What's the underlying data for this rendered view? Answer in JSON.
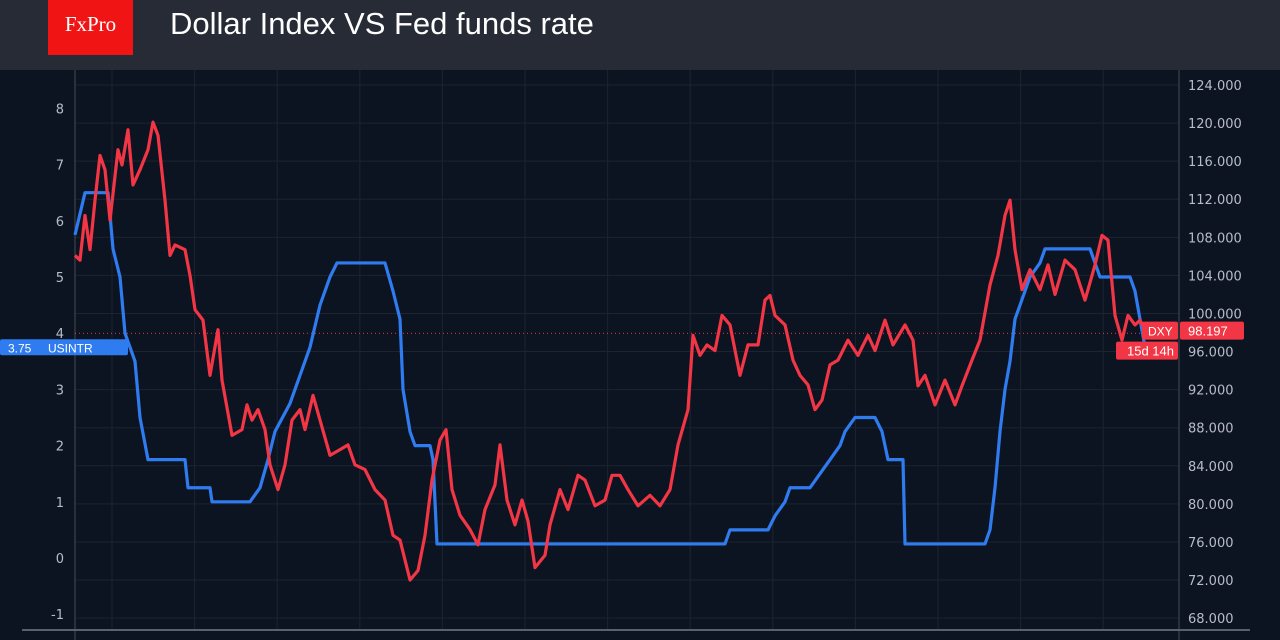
{
  "header": {
    "logo_text": "FxPro",
    "title": "Dollar Index VS Fed funds rate"
  },
  "colors": {
    "usintr": "#2f7bf0",
    "dxy": "#f23645",
    "background": "#0d1421",
    "header": "#272b36",
    "logo": "#f01414"
  },
  "chart_data": {
    "type": "line",
    "title": "Dollar Index VS Fed funds rate",
    "grid": true,
    "x_ticks_shown": false,
    "left_axis": {
      "ylim": [
        -1.2,
        8.8
      ],
      "ticks": [
        "-1",
        "0",
        "1",
        "2",
        "3",
        "4",
        "5",
        "6",
        "7",
        "8"
      ]
    },
    "right_axis": {
      "ylim": [
        66.0,
        126.0
      ],
      "ticks": [
        "68.000",
        "72.000",
        "76.000",
        "80.000",
        "84.000",
        "88.000",
        "92.000",
        "96.000",
        "100.000",
        "104.000",
        "108.000",
        "112.000",
        "116.000",
        "120.000",
        "124.000"
      ]
    },
    "reference_line": {
      "axis": "left",
      "value": 4
    },
    "series": [
      {
        "name": "USINTR",
        "axis": "left",
        "last_label": "3.75",
        "x": [
          0,
          10,
          33,
          38,
          45,
          50,
          60,
          65,
          73,
          110,
          113,
          135,
          137,
          175,
          185,
          193,
          200,
          215,
          225,
          235,
          245,
          255,
          262,
          310,
          318,
          325,
          328,
          335,
          340,
          355,
          358,
          362,
          650,
          655,
          693,
          700,
          710,
          715,
          735,
          745,
          755,
          765,
          770,
          780,
          800,
          807,
          813,
          828,
          830,
          910,
          915,
          920,
          925,
          930,
          935,
          940,
          945,
          955,
          965,
          970,
          1015,
          1025,
          1055,
          1060,
          1070
        ],
        "y": [
          5.75,
          6.5,
          6.5,
          5.5,
          5,
          4,
          3.5,
          2.5,
          1.75,
          1.75,
          1.25,
          1.25,
          1,
          1,
          1.25,
          1.75,
          2.25,
          2.75,
          3.25,
          3.75,
          4.5,
          5,
          5.25,
          5.25,
          4.75,
          4.25,
          3,
          2.25,
          2,
          2,
          1.75,
          0.25,
          0.25,
          0.5,
          0.5,
          0.75,
          1,
          1.25,
          1.25,
          1.5,
          1.75,
          2,
          2.25,
          2.5,
          2.5,
          2.25,
          1.75,
          1.75,
          0.25,
          0.25,
          0.5,
          1.25,
          2.25,
          3,
          3.5,
          4.25,
          4.5,
          5,
          5.25,
          5.5,
          5.5,
          5,
          5,
          4.75,
          3.75
        ]
      },
      {
        "name": "DXY",
        "axis": "right",
        "last_label": "98.197",
        "countdown": "15d 14h",
        "x": [
          0,
          5,
          10,
          15,
          20,
          25,
          30,
          35,
          43,
          47,
          53,
          58,
          65,
          73,
          78,
          83,
          90,
          95,
          100,
          110,
          115,
          120,
          128,
          135,
          143,
          147,
          157,
          167,
          172,
          177,
          183,
          190,
          195,
          203,
          210,
          217,
          225,
          230,
          238,
          245,
          255,
          265,
          273,
          280,
          290,
          300,
          310,
          318,
          325,
          335,
          343,
          350,
          357,
          365,
          371,
          377,
          385,
          395,
          403,
          410,
          420,
          425,
          432,
          440,
          447,
          453,
          460,
          470,
          475,
          485,
          493,
          503,
          510,
          520,
          530,
          537,
          545,
          553,
          563,
          575,
          585,
          595,
          603,
          613,
          618,
          625,
          632,
          640,
          647,
          655,
          665,
          673,
          683,
          690,
          695,
          700,
          710,
          718,
          725,
          733,
          740,
          747,
          755,
          763,
          773,
          783,
          793,
          800,
          810,
          818,
          830,
          838,
          843,
          850,
          860,
          870,
          880,
          887,
          897,
          905,
          915,
          923,
          930,
          935,
          940,
          947,
          955,
          965,
          973,
          980,
          990,
          1000,
          1010,
          1020,
          1027,
          1033,
          1040,
          1047,
          1053,
          1060,
          1065,
          1070
        ],
        "y": [
          106.1,
          105.6,
          110.3,
          106.7,
          111.9,
          116.6,
          115.1,
          109.8,
          117.2,
          115.6,
          119.3,
          113.5,
          115.1,
          117.2,
          120.1,
          118.7,
          111.9,
          106.1,
          107.2,
          106.7,
          104.0,
          100.4,
          99.3,
          93.5,
          98.3,
          93.0,
          87.2,
          87.8,
          90.4,
          88.8,
          89.9,
          87.8,
          84.1,
          81.5,
          84.1,
          88.8,
          89.9,
          87.8,
          91.4,
          88.8,
          85.1,
          85.7,
          86.2,
          84.1,
          83.6,
          81.5,
          80.4,
          76.7,
          76.2,
          72.0,
          73.0,
          76.7,
          82.5,
          86.7,
          87.8,
          81.5,
          78.8,
          77.3,
          75.7,
          79.4,
          82.0,
          86.2,
          80.4,
          77.8,
          80.4,
          78.2,
          73.3,
          74.6,
          77.8,
          81.5,
          79.4,
          83.0,
          82.5,
          79.8,
          80.4,
          83.0,
          83.0,
          81.5,
          79.8,
          80.9,
          79.8,
          81.5,
          86.2,
          89.9,
          97.7,
          95.6,
          96.7,
          96.1,
          99.8,
          98.8,
          93.5,
          96.7,
          96.7,
          101.4,
          101.9,
          99.8,
          98.8,
          95.1,
          93.5,
          92.5,
          89.9,
          90.9,
          94.6,
          95.1,
          97.2,
          95.6,
          97.7,
          96.1,
          99.3,
          96.7,
          98.8,
          97.2,
          92.4,
          93.5,
          90.4,
          93.0,
          90.4,
          92.4,
          95.1,
          97.2,
          103.0,
          106.1,
          110.3,
          111.9,
          106.7,
          102.5,
          104.6,
          102.5,
          105.1,
          102.0,
          105.6,
          104.6,
          101.4,
          105.1,
          108.2,
          107.7,
          99.8,
          97.2,
          99.8,
          98.8,
          99.3,
          98.2
        ]
      }
    ]
  }
}
